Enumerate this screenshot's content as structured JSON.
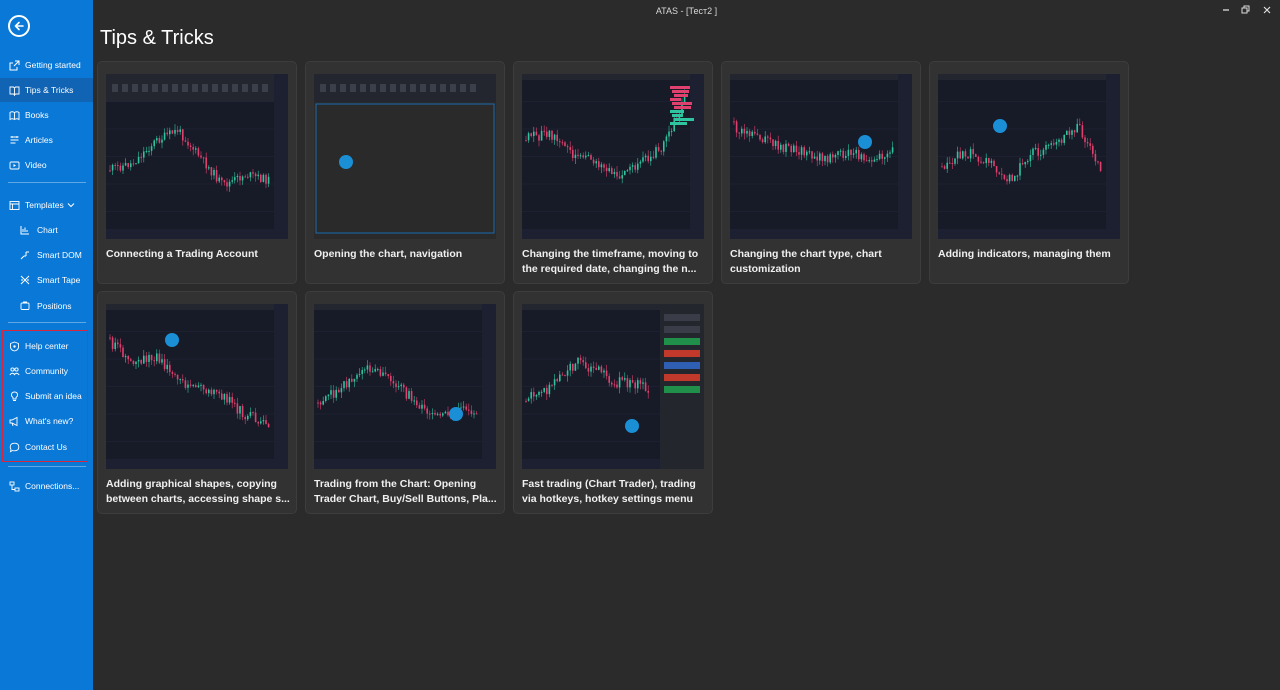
{
  "window": {
    "title": "ATAS - [Тест2 ]"
  },
  "page": {
    "title": "Tips & Tricks"
  },
  "sidebar": {
    "items": [
      {
        "label": "Getting started",
        "icon": "external-link-icon"
      },
      {
        "label": "Tips & Tricks",
        "icon": "book-open-icon",
        "active": true
      },
      {
        "label": "Books",
        "icon": "book-icon"
      },
      {
        "label": "Articles",
        "icon": "article-icon"
      },
      {
        "label": "Video",
        "icon": "video-icon"
      }
    ],
    "templates": {
      "label": "Templates",
      "items": [
        {
          "label": "Chart",
          "icon": "chart-icon"
        },
        {
          "label": "Smart DOM",
          "icon": "smart-dom-icon"
        },
        {
          "label": "Smart Tape",
          "icon": "smart-tape-icon"
        },
        {
          "label": "Positions",
          "icon": "positions-icon"
        }
      ]
    },
    "support": [
      {
        "label": "Help center",
        "icon": "help-center-icon"
      },
      {
        "label": "Community",
        "icon": "community-icon"
      },
      {
        "label": "Submit an idea",
        "icon": "lightbulb-icon"
      },
      {
        "label": "What's new?",
        "icon": "megaphone-icon"
      },
      {
        "label": "Contact Us",
        "icon": "chat-icon"
      }
    ],
    "connections": {
      "label": "Connections...",
      "icon": "connections-icon"
    }
  },
  "cards": [
    {
      "title": "Connecting a Trading Account"
    },
    {
      "title": "Opening the chart, navigation"
    },
    {
      "title": "Changing the timeframe, moving to the required date, changing the n..."
    },
    {
      "title": "Changing the chart type, chart customization"
    },
    {
      "title": "Adding indicators, managing them"
    },
    {
      "title": "Adding graphical shapes, copying between charts, accessing shape s..."
    },
    {
      "title": "Trading from the Chart: Opening Trader Chart, Buy/Sell Buttons, Pla..."
    },
    {
      "title": "Fast trading (Chart Trader), trading via hotkeys, hotkey settings menu"
    }
  ],
  "colors": {
    "sidebar": "#0a78d7",
    "sidebar_active": "#1163b3",
    "background": "#2b2b2b",
    "card": "#323232",
    "highlight_box": "#d7263d",
    "candle_up": "#2ec4a0",
    "candle_down": "#e0406e",
    "cursor_marker": "#1b8fd6"
  }
}
